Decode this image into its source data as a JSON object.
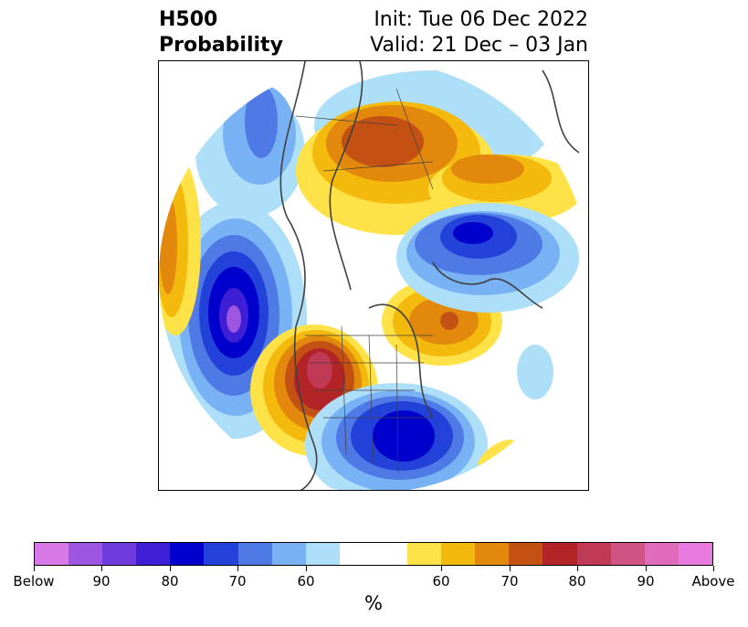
{
  "title": {
    "left_line1": "H500",
    "left_line2": "Probability",
    "right_line1": "Init: Tue 06 Dec 2022",
    "right_line2": "Valid: 21 Dec – 03 Jan"
  },
  "legend": {
    "unit": "%",
    "colors": [
      "#d77ae8",
      "#9e56e0",
      "#6e3cdc",
      "#3f1fd6",
      "#0000cd",
      "#2342da",
      "#4f7ae6",
      "#78b2f4",
      "#addff9",
      "#ffffff",
      "#ffffff",
      "#ffe247",
      "#f3b90c",
      "#e2880d",
      "#c35114",
      "#b32426",
      "#c13a55",
      "#d05585",
      "#df6bbb",
      "#e87be0"
    ],
    "ticks": [
      "Below",
      "90",
      "80",
      "70",
      "60",
      "60",
      "70",
      "80",
      "90",
      "Above"
    ],
    "tick_positions": [
      0,
      2,
      4,
      6,
      8,
      12,
      14,
      16,
      18,
      20
    ]
  },
  "map": {
    "projection": "north-polar-stereographic",
    "overlay": "coastlines-and-borders",
    "palette": {
      "coast": "#404040",
      "blue_light": "#addff9",
      "blue_2": "#78b2f4",
      "blue_3": "#4f7ae6",
      "blue_4": "#2342da",
      "blue_5": "#0000cd",
      "blue_6": "#3f1fd6",
      "violet": "#9e56e0",
      "yellow": "#ffe247",
      "gold": "#f3b90c",
      "orange": "#e2880d",
      "dark_orange": "#c35114",
      "red": "#b32426",
      "rose": "#c13a55"
    }
  }
}
